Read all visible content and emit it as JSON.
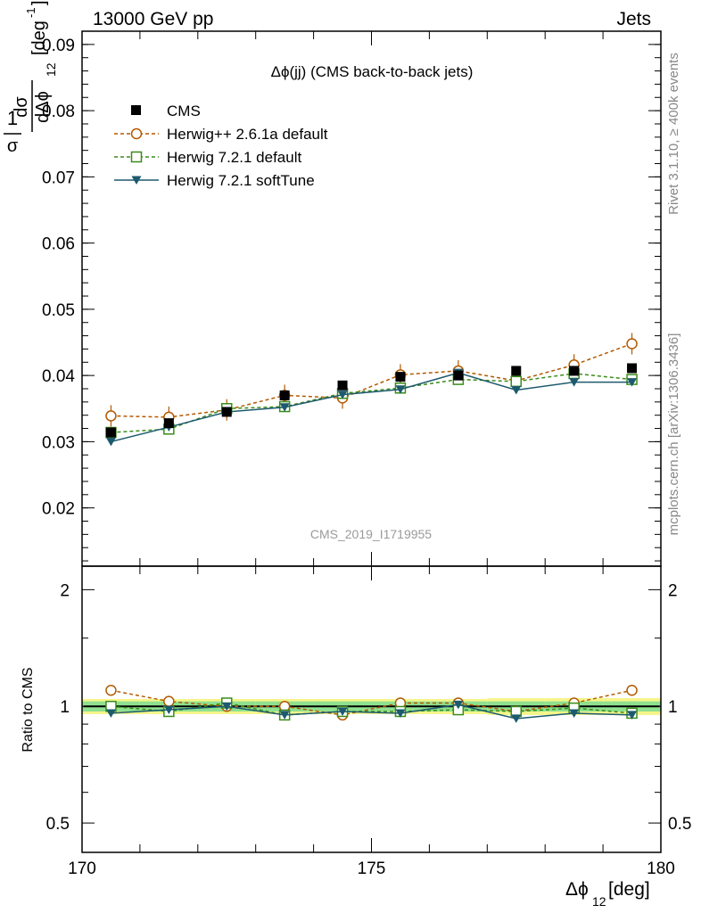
{
  "header": {
    "left": "13000 GeV pp",
    "right": "Jets"
  },
  "side_texts": {
    "top": "Rivet 3.1.10, ≥ 400k events",
    "bottom": "mcplots.cern.ch [arXiv:1306.3436]"
  },
  "watermark": "CMS_2019_I1719955",
  "colors": {
    "cms": "#000000",
    "herwigpp": "#b35900",
    "herwig721": "#3a8c1a",
    "softtune": "#1d5a6e",
    "band_inner": "#8fe08f",
    "band_outer": "#f5f58a"
  },
  "chart_data": [
    {
      "type": "line",
      "title": "Δϕ(jj) (CMS back-to-back jets)",
      "ylabel": "1/σ dσ/dΔϕ₁₂ [deg⁻¹]",
      "ylabel_parts": {
        "num": "1",
        "den": "σ",
        "dnum": "dσ",
        "dden": "dΔϕ",
        "sub": "12",
        "unit": "[deg",
        "sup": "-1",
        "close": "]"
      },
      "xlim": [
        170,
        180
      ],
      "ylim": [
        0.0112,
        0.092
      ],
      "yticks": [
        "0.02",
        "0.03",
        "0.04",
        "0.05",
        "0.06",
        "0.07",
        "0.08",
        "0.09"
      ],
      "ytick_values": [
        0.02,
        0.03,
        0.04,
        0.05,
        0.06,
        0.07,
        0.08,
        0.09
      ],
      "x": [
        170.5,
        171.5,
        172.5,
        173.5,
        174.5,
        175.5,
        176.5,
        177.5,
        178.5,
        179.5
      ],
      "series": [
        {
          "name": "CMS",
          "marker": "square",
          "values": [
            0.0314,
            0.0328,
            0.0345,
            0.037,
            0.0385,
            0.0398,
            0.04,
            0.0407,
            0.0407,
            0.0411
          ]
        },
        {
          "name": "Herwig++ 2.6.1a default",
          "marker": "circle",
          "values": [
            0.0339,
            0.0337,
            0.0348,
            0.037,
            0.0366,
            0.0401,
            0.0407,
            0.0392,
            0.0416,
            0.0448
          ]
        },
        {
          "name": "Herwig 7.2.1 default",
          "marker": "open-square",
          "values": [
            0.0314,
            0.0319,
            0.035,
            0.0353,
            0.0373,
            0.0381,
            0.0394,
            0.0391,
            0.0403,
            0.0394
          ]
        },
        {
          "name": "Herwig 7.2.1 softTune",
          "marker": "triangle-down",
          "values": [
            0.03,
            0.0322,
            0.0345,
            0.0352,
            0.0371,
            0.0379,
            0.0404,
            0.0378,
            0.039,
            0.039
          ]
        }
      ]
    },
    {
      "type": "line",
      "ylabel": "Ratio to CMS",
      "xlabel": "Δϕ₁₂ [deg]",
      "xlabel_parts": {
        "main": "Δϕ",
        "sub": "12",
        "unit": " [deg]"
      },
      "xlim": [
        170,
        180
      ],
      "ylim": [
        0.42,
        2.3
      ],
      "log_y": true,
      "xticks": [
        "170",
        "175",
        "180"
      ],
      "xtick_values": [
        170,
        175,
        180
      ],
      "yticks": [
        "0.5",
        "1",
        "2"
      ],
      "ytick_values": [
        0.5,
        1,
        2
      ],
      "x": [
        170.5,
        171.5,
        172.5,
        173.5,
        174.5,
        175.5,
        176.5,
        177.5,
        178.5,
        179.5
      ],
      "cms_band_inner": [
        0.03,
        0.03,
        0.03,
        0.03,
        0.03,
        0.03,
        0.03,
        0.03,
        0.03,
        0.03
      ],
      "cms_band_outer": [
        0.045,
        0.045,
        0.045,
        0.045,
        0.045,
        0.045,
        0.045,
        0.05,
        0.05,
        0.05
      ],
      "series": [
        {
          "name": "Herwig++ 2.6.1a default",
          "marker": "circle",
          "values": [
            1.1,
            1.03,
            1.0,
            1.0,
            0.95,
            1.02,
            1.02,
            0.97,
            1.02,
            1.1
          ]
        },
        {
          "name": "Herwig 7.2.1 default",
          "marker": "open-square",
          "values": [
            1.0,
            0.97,
            1.02,
            0.95,
            0.97,
            0.97,
            0.98,
            0.97,
            0.99,
            0.96
          ]
        },
        {
          "name": "Herwig 7.2.1 softTune",
          "marker": "triangle-down",
          "values": [
            0.96,
            0.98,
            1.0,
            0.95,
            0.97,
            0.96,
            1.01,
            0.93,
            0.96,
            0.95
          ]
        }
      ]
    }
  ]
}
